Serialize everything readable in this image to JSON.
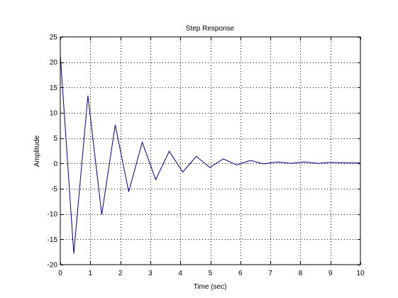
{
  "chart_data": {
    "type": "line",
    "title": "Step Response",
    "xlabel": "Time (sec)",
    "ylabel": "Amplitude",
    "xlim": [
      0,
      10
    ],
    "ylim": [
      -20,
      25
    ],
    "x_ticks": [
      0,
      1,
      2,
      3,
      4,
      5,
      6,
      7,
      8,
      9,
      10
    ],
    "y_ticks": [
      -20,
      -15,
      -10,
      -5,
      0,
      5,
      10,
      15,
      20,
      25
    ],
    "x_tick_labels": [
      "0",
      "1",
      "2",
      "3",
      "4",
      "5",
      "6",
      "7",
      "8",
      "9",
      "10"
    ],
    "y_tick_labels": [
      "-20",
      "-15",
      "-10",
      "-5",
      "0",
      "5",
      "10",
      "15",
      "20",
      "25"
    ],
    "grid": true,
    "line_color": "#00007f",
    "series": [
      {
        "x": [
          0.0,
          0.45,
          0.92,
          1.38,
          1.83,
          2.28,
          2.73,
          3.18,
          3.63,
          4.08,
          4.53,
          4.98,
          5.43,
          5.88,
          6.33,
          6.78,
          7.23,
          7.68,
          8.13,
          8.58,
          9.03,
          9.48,
          9.93,
          10.0
        ],
        "y": [
          21.5,
          -17.8,
          13.4,
          -10.1,
          7.6,
          -5.6,
          4.2,
          -3.2,
          2.4,
          -1.7,
          1.4,
          -0.8,
          0.9,
          -0.3,
          0.6,
          -0.1,
          0.3,
          0.0,
          0.3,
          0.0,
          0.2,
          0.1,
          0.1,
          0.1
        ]
      }
    ]
  }
}
